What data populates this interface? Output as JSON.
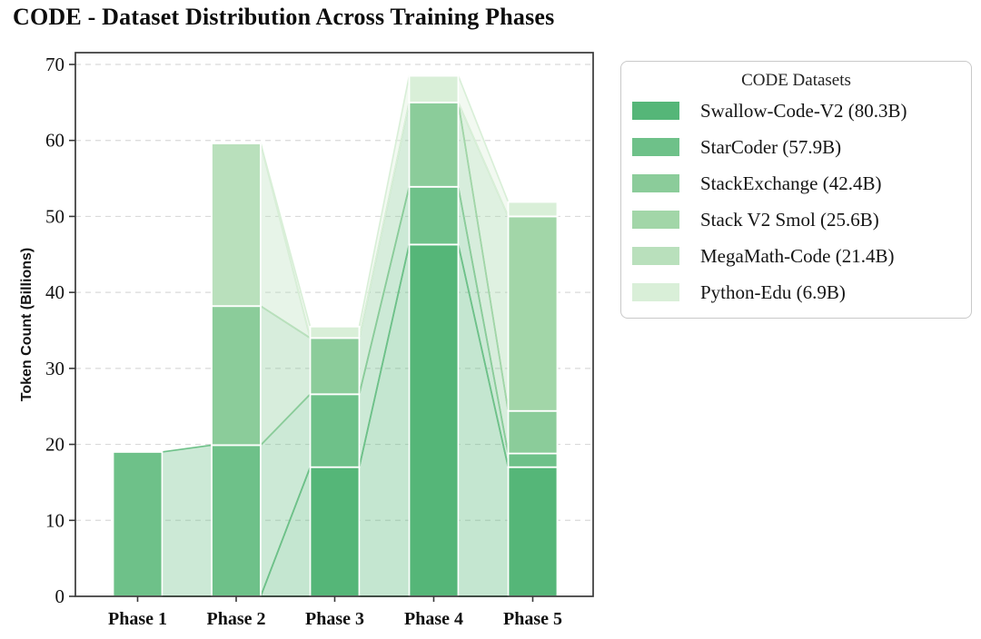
{
  "chart_data": {
    "type": "bar",
    "variant": "stacked-bars-with-flow-bands",
    "title": "CODE - Dataset Distribution Across Training Phases",
    "xlabel": "",
    "ylabel": "Token Count (Billions)",
    "categories": [
      "Phase 1",
      "Phase 2",
      "Phase 3",
      "Phase 4",
      "Phase 5"
    ],
    "series": [
      {
        "name": "Swallow-Code-V2",
        "total": "80.3B",
        "color": "#55b678",
        "values": [
          0,
          0,
          17.0,
          46.3,
          17.0
        ]
      },
      {
        "name": "StarCoder",
        "total": "57.9B",
        "color": "#6ec189",
        "values": [
          19.0,
          19.9,
          9.6,
          7.6,
          1.8
        ]
      },
      {
        "name": "StackExchange",
        "total": "42.4B",
        "color": "#8bcc9a",
        "values": [
          0,
          18.3,
          7.4,
          11.1,
          5.6
        ]
      },
      {
        "name": "Stack V2 Smol",
        "total": "25.6B",
        "color": "#a2d6a8",
        "values": [
          0,
          0,
          0,
          0,
          25.6
        ]
      },
      {
        "name": "MegaMath-Code",
        "total": "21.4B",
        "color": "#b9e0bc",
        "values": [
          0,
          21.4,
          0,
          0,
          0
        ]
      },
      {
        "name": "Python-Edu",
        "total": "6.9B",
        "color": "#d9efd8",
        "values": [
          0,
          0,
          1.5,
          3.5,
          1.9
        ]
      }
    ],
    "stack_order": "first series at bottom",
    "ylim": [
      0,
      70
    ],
    "yticks": [
      0,
      10,
      20,
      30,
      40,
      50,
      60,
      70
    ],
    "grid": "horizontal dashed",
    "legend_position": "outside upper right",
    "omitted_flows": [
      {
        "from_phase": "Phase 1",
        "series": "StackExchange"
      },
      {
        "from_phase": "Phase 1",
        "series": "MegaMath-Code"
      }
    ]
  },
  "legend": {
    "title": "CODE Datasets",
    "items": [
      {
        "label": "Swallow-Code-V2 (80.3B)"
      },
      {
        "label": "StarCoder (57.9B)"
      },
      {
        "label": "StackExchange (42.4B)"
      },
      {
        "label": "Stack V2 Smol (25.6B)"
      },
      {
        "label": "MegaMath-Code (21.4B)"
      },
      {
        "label": "Python-Edu (6.9B)"
      }
    ]
  }
}
